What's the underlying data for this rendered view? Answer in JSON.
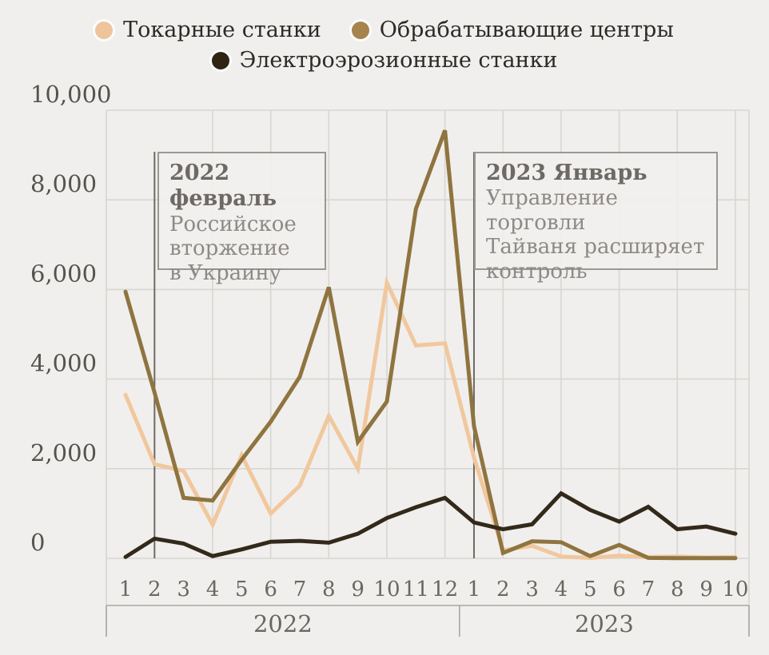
{
  "legend": {
    "items": [
      {
        "label": "Токарные станки",
        "color": "#eec49a"
      },
      {
        "label": "Обрабатывающие центры",
        "color": "#a7834d"
      },
      {
        "label": "Электроэрозионные станки",
        "color": "#2f2512"
      }
    ]
  },
  "chart_data": {
    "type": "line",
    "title": "",
    "xlabel": "",
    "ylabel": "",
    "ylim": [
      0,
      10000
    ],
    "grid": true,
    "legend_position": "top",
    "months": [
      "1",
      "2",
      "3",
      "4",
      "5",
      "6",
      "7",
      "8",
      "9",
      "10",
      "11",
      "12",
      "1",
      "2",
      "3",
      "4",
      "5",
      "6",
      "7",
      "8",
      "9",
      "10"
    ],
    "year_groups": [
      {
        "label": "2022",
        "months": 12
      },
      {
        "label": "2023",
        "months": 10
      }
    ],
    "y_axis": {
      "ticks": [
        {
          "value": 0,
          "label": "0"
        },
        {
          "value": 2000,
          "label": "2,000"
        },
        {
          "value": 4000,
          "label": "4,000"
        },
        {
          "value": 6000,
          "label": "6,000"
        },
        {
          "value": 8000,
          "label": "8,000"
        },
        {
          "value": 10000,
          "label": "10,000"
        }
      ]
    },
    "x_gridline_months": [
      4,
      6,
      8,
      10,
      12,
      14,
      16,
      18,
      20,
      22
    ],
    "series": [
      {
        "name": "Токарные станки",
        "color": "#f1c79d",
        "values": [
          3650,
          2100,
          1950,
          750,
          2300,
          1000,
          1620,
          3180,
          2000,
          6150,
          4750,
          4800,
          2250,
          180,
          280,
          40,
          10,
          60,
          30,
          40,
          20,
          30
        ]
      },
      {
        "name": "Обрабатывающие центры",
        "color": "#8f7440",
        "values": [
          5950,
          3700,
          1350,
          1290,
          2200,
          3050,
          4050,
          6050,
          2600,
          3500,
          7800,
          9550,
          2950,
          120,
          380,
          360,
          50,
          300,
          10,
          5,
          5,
          5
        ]
      },
      {
        "name": "Электроэрозионные станки",
        "color": "#33291b",
        "values": [
          30,
          440,
          330,
          50,
          200,
          370,
          390,
          350,
          550,
          900,
          1140,
          1350,
          800,
          650,
          760,
          1450,
          1080,
          820,
          1150,
          650,
          710,
          550
        ]
      }
    ],
    "annotations": [
      {
        "month_index": 2,
        "title": "2022 февраль",
        "body": "Российское\nвторжение\nв Украину"
      },
      {
        "month_index": 13,
        "title": "2023 Январь",
        "body": "Управление торговли\nТайваня расширяет\nконтроль"
      }
    ]
  },
  "colors": {
    "background": "#f0efed",
    "gridline": "#d8d6d1",
    "event_line": "#6e6a64",
    "axis_text": "#56534e",
    "month_text": "#6b6760",
    "band_line": "#a9a7a2"
  }
}
